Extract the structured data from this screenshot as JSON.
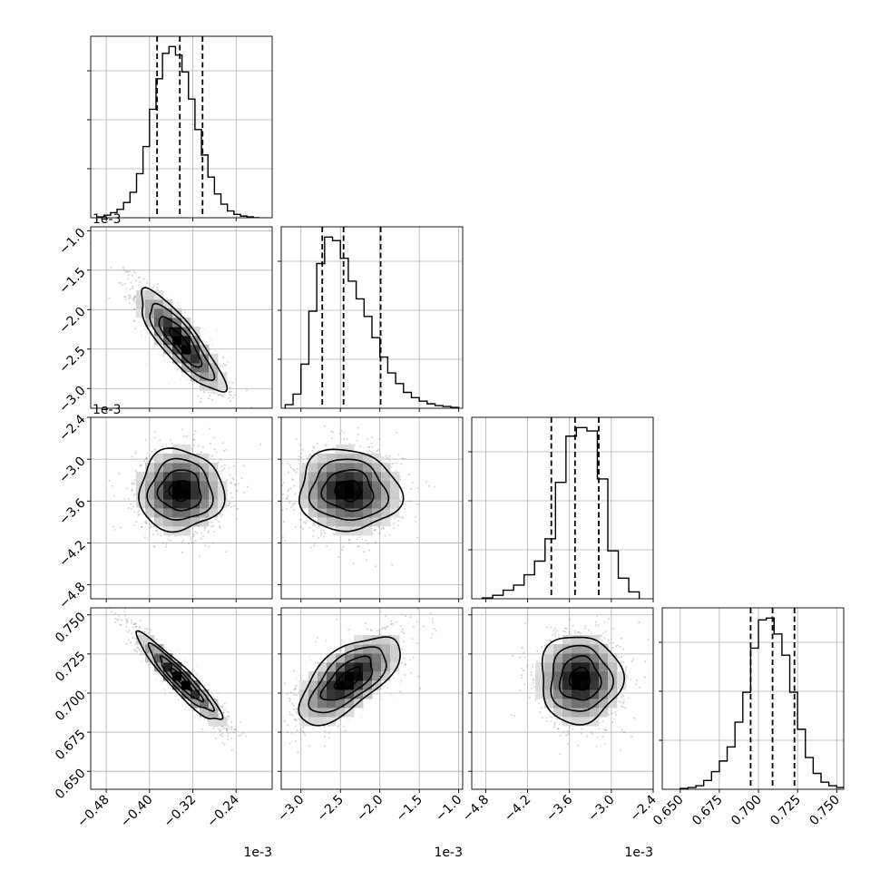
{
  "chart_data": {
    "type": "corner",
    "parameters": [
      {
        "key": "p0",
        "offset_text": "1e-3",
        "lim": [
          -0.5087,
          -0.1733
        ],
        "ticks": [
          -0.48,
          -0.4,
          -0.32,
          -0.24
        ],
        "tick_labels": [
          "−0.48",
          "−0.40",
          "−0.32",
          "−0.24"
        ],
        "mean": -0.343,
        "sd": 0.039,
        "quantiles": [
          -0.386,
          -0.344,
          -0.302
        ],
        "hist": {
          "bins": [
            -0.496,
            -0.484,
            -0.472,
            -0.46,
            -0.448,
            -0.436,
            -0.424,
            -0.412,
            -0.4,
            -0.388,
            -0.376,
            -0.364,
            -0.352,
            -0.34,
            -0.328,
            -0.316,
            -0.304,
            -0.292,
            -0.28,
            -0.268,
            -0.256,
            -0.244,
            -0.232,
            -0.22,
            -0.208,
            -0.196
          ],
          "counts": [
            0.5,
            1.5,
            3,
            5,
            9,
            15,
            26,
            42,
            64,
            82,
            97,
            101,
            96,
            86,
            70,
            52,
            37,
            24,
            14,
            8,
            4,
            2,
            1,
            0.5,
            0
          ]
        }
      },
      {
        "key": "p1",
        "offset_text": "1e-3",
        "lim": [
          -3.25,
          -0.95
        ],
        "ticks": [
          -3.0,
          -2.5,
          -2.0,
          -1.5,
          -1.0
        ],
        "tick_labels": [
          "−3.0",
          "−2.5",
          "−2.0",
          "−1.5",
          "−1.0"
        ],
        "mean": -2.4,
        "sd": 0.32,
        "quantiles": [
          -2.73,
          -2.46,
          -1.99
        ],
        "hist": {
          "bins": [
            -3.2,
            -3.1,
            -3.0,
            -2.9,
            -2.8,
            -2.7,
            -2.6,
            -2.5,
            -2.4,
            -2.3,
            -2.2,
            -2.1,
            -2.0,
            -1.9,
            -1.8,
            -1.7,
            -1.6,
            -1.5,
            -1.4,
            -1.3,
            -1.2,
            -1.1,
            -1.0
          ],
          "counts": [
            2,
            8,
            25,
            55,
            82,
            97,
            95,
            85,
            72,
            62,
            52,
            40,
            29,
            20,
            14,
            9,
            6,
            4,
            2.5,
            1.5,
            1,
            0.5
          ]
        }
      },
      {
        "key": "p2",
        "offset_text": "1e-3",
        "lim": [
          -5.0,
          -2.4
        ],
        "ticks": [
          -4.8,
          -4.2,
          -3.6,
          -3.0,
          -2.4
        ],
        "tick_labels": [
          "−4.8",
          "−4.2",
          "−3.6",
          "−3.0",
          "−2.4"
        ],
        "mean": -3.45,
        "sd": 0.29,
        "quantiles": [
          -3.86,
          -3.52,
          -3.18
        ],
        "hist": {
          "bins": [
            -4.85,
            -4.7,
            -4.55,
            -4.4,
            -4.25,
            -4.1,
            -3.95,
            -3.8,
            -3.65,
            -3.5,
            -3.35,
            -3.2,
            -3.05,
            -2.9,
            -2.75,
            -2.6
          ],
          "counts": [
            0.5,
            2,
            5,
            8,
            14,
            22,
            35,
            68,
            95,
            100,
            98,
            70,
            28,
            12,
            4
          ]
        }
      },
      {
        "key": "p3",
        "offset_text": "",
        "lim": [
          0.6385,
          0.7545
        ],
        "ticks": [
          0.65,
          0.675,
          0.7,
          0.725,
          0.75
        ],
        "tick_labels": [
          "0.650",
          "0.675",
          "0.700",
          "0.725",
          "0.750"
        ],
        "mean": 0.709,
        "sd": 0.014,
        "quantiles": [
          0.695,
          0.709,
          0.723
        ],
        "hist": {
          "bins": [
            0.65,
            0.655,
            0.66,
            0.665,
            0.67,
            0.675,
            0.68,
            0.685,
            0.69,
            0.695,
            0.7,
            0.705,
            0.71,
            0.715,
            0.72,
            0.725,
            0.73,
            0.735,
            0.74,
            0.745,
            0.75,
            0.755
          ],
          "counts": [
            0.5,
            1,
            2,
            5,
            10,
            16,
            24,
            38,
            55,
            80,
            96,
            97,
            88,
            76,
            55,
            34,
            18,
            9,
            4,
            2,
            1
          ]
        }
      }
    ],
    "correlations": [
      {
        "row": 1,
        "col": 0,
        "r": -0.85
      },
      {
        "row": 2,
        "col": 0,
        "r": 0.0
      },
      {
        "row": 2,
        "col": 1,
        "r": -0.05
      },
      {
        "row": 3,
        "col": 0,
        "r": -0.93
      },
      {
        "row": 3,
        "col": 1,
        "r": 0.65
      },
      {
        "row": 3,
        "col": 2,
        "r": 0.0
      }
    ],
    "density_levels": [
      0.118,
      0.393,
      0.675,
      0.864
    ],
    "grid": true,
    "scatter": true
  }
}
